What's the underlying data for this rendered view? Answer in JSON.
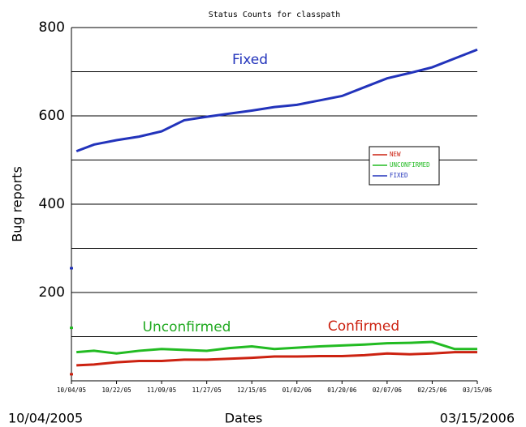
{
  "chart_data": {
    "type": "line",
    "title": "Status Counts for classpath",
    "ylabel": "Bug reports",
    "xlabel": "Dates",
    "x_range_labels": [
      "10/04/2005",
      "03/15/2006"
    ],
    "annotations": [
      "Fixed",
      "Unconfirmed",
      "Confirmed"
    ],
    "x": [
      "2005-10-04",
      "2005-10-05",
      "2005-10-06",
      "2005-10-13",
      "2005-10-22",
      "2005-10-31",
      "2005-11-09",
      "2005-11-18",
      "2005-11-27",
      "2005-12-06",
      "2005-12-15",
      "2005-12-24",
      "2006-01-02",
      "2006-01-11",
      "2006-01-20",
      "2006-01-29",
      "2006-02-07",
      "2006-02-16",
      "2006-02-25",
      "2006-03-06",
      "2006-03-15"
    ],
    "series": [
      {
        "name": "NEW",
        "color": "#cc2211",
        "values": [
          15,
          null,
          35,
          37,
          42,
          45,
          45,
          48,
          48,
          50,
          52,
          55,
          55,
          56,
          56,
          58,
          62,
          60,
          62,
          65,
          65
        ]
      },
      {
        "name": "UNCONFIRMED",
        "color": "#22bb22",
        "values": [
          120,
          null,
          65,
          68,
          62,
          68,
          72,
          70,
          68,
          74,
          78,
          72,
          75,
          78,
          80,
          82,
          85,
          86,
          88,
          72,
          72
        ]
      },
      {
        "name": "FIXED",
        "color": "#2233bb",
        "values": [
          255,
          null,
          520,
          535,
          545,
          553,
          565,
          590,
          598,
          605,
          612,
          620,
          625,
          635,
          645,
          665,
          685,
          697,
          710,
          730,
          750
        ]
      }
    ],
    "xlim": [
      "2005-10-04",
      "2006-03-15"
    ],
    "xticks": [
      {
        "value": "2005-10-04",
        "label": "10/04/05"
      },
      {
        "value": "2005-10-22",
        "label": "10/22/05"
      },
      {
        "value": "2005-11-09",
        "label": "11/09/05"
      },
      {
        "value": "2005-11-27",
        "label": "11/27/05"
      },
      {
        "value": "2005-12-15",
        "label": "12/15/05"
      },
      {
        "value": "2006-01-02",
        "label": "01/02/06"
      },
      {
        "value": "2006-01-20",
        "label": "01/20/06"
      },
      {
        "value": "2006-02-07",
        "label": "02/07/06"
      },
      {
        "value": "2006-02-25",
        "label": "02/25/06"
      },
      {
        "value": "2006-03-15",
        "label": "03/15/06"
      }
    ],
    "ylim": [
      0,
      800
    ],
    "yticks": [
      {
        "value": 100,
        "label": null
      },
      200,
      {
        "value": 300,
        "label": null
      },
      400,
      {
        "value": 500,
        "label": null
      },
      600,
      {
        "value": 700,
        "label": null
      },
      800
    ],
    "grid": true
  }
}
